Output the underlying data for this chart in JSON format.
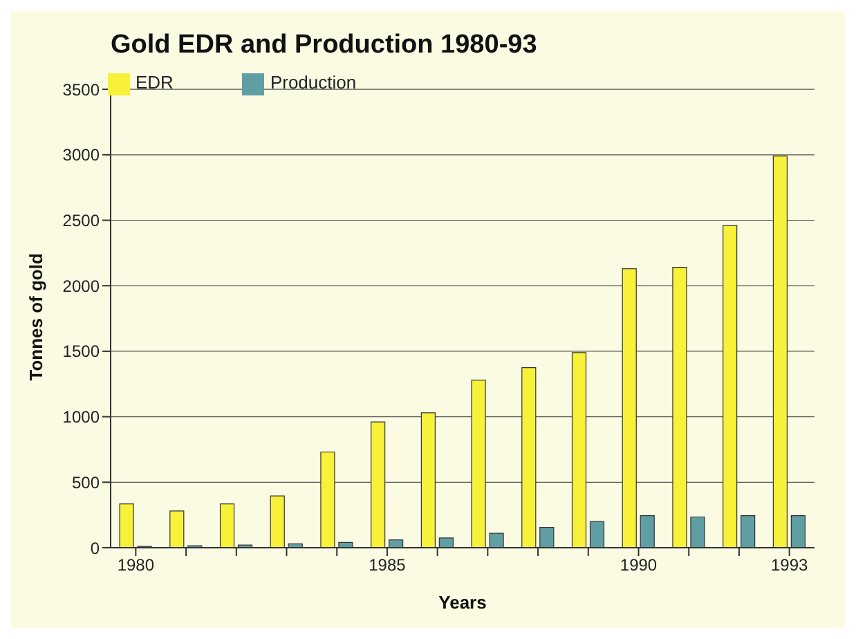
{
  "chart_data": {
    "type": "bar",
    "title": "Gold EDR and Production 1980-93",
    "xlabel": "Years",
    "ylabel": "Tonnes of gold",
    "categories": [
      "1980",
      null,
      null,
      null,
      null,
      "1985",
      null,
      null,
      null,
      null,
      "1990",
      null,
      null,
      "1993"
    ],
    "series": [
      {
        "name": "EDR",
        "color": "#f7f13a",
        "values": [
          335,
          280,
          335,
          395,
          730,
          960,
          1030,
          1280,
          1375,
          1490,
          2130,
          2140,
          2460,
          2990
        ]
      },
      {
        "name": "Production",
        "color": "#5f9ea3",
        "values": [
          10,
          15,
          20,
          30,
          40,
          60,
          75,
          110,
          155,
          200,
          245,
          235,
          245,
          245
        ]
      }
    ],
    "ylim": [
      0,
      3500
    ],
    "yticks": [
      0,
      500,
      1000,
      1500,
      2000,
      2500,
      3000,
      3500
    ],
    "grid": "y",
    "legend": "top left"
  }
}
